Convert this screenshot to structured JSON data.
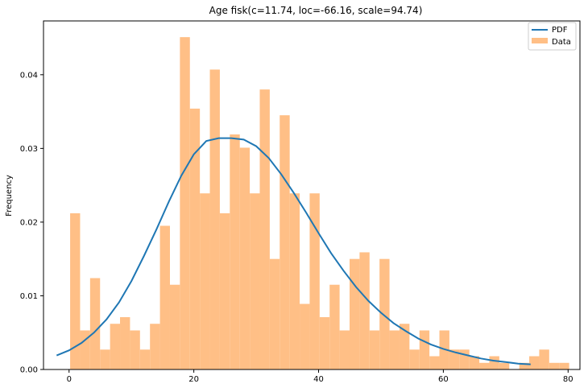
{
  "chart_data": {
    "type": "bar",
    "title": "Age fisk(c=11.74, loc=-66.16, scale=94.74)",
    "xlabel": "",
    "ylabel": "Frequency",
    "xlim": [
      -4.1,
      81.9
    ],
    "ylim": [
      0,
      0.0473
    ],
    "x_ticks": [
      "0",
      "20",
      "40",
      "60",
      "80"
    ],
    "y_ticks": [
      "0.00",
      "0.01",
      "0.02",
      "0.03",
      "0.04"
    ],
    "x_tick_values": [
      0,
      20,
      40,
      60,
      80
    ],
    "y_tick_values": [
      0,
      0.01,
      0.02,
      0.03,
      0.04
    ],
    "grid": false,
    "legend_position": "top-right",
    "colors": {
      "histogram": "#ffbf86",
      "pdf": "#1f77b4"
    },
    "histogram": {
      "name": "Data",
      "bin_start": 0.17,
      "bin_width": 1.6,
      "values": [
        0.0212,
        0.0053,
        0.0124,
        0.0027,
        0.0062,
        0.0071,
        0.0053,
        0.0027,
        0.0062,
        0.0195,
        0.0115,
        0.0451,
        0.0354,
        0.0239,
        0.0407,
        0.0212,
        0.0319,
        0.0301,
        0.0239,
        0.038,
        0.015,
        0.0345,
        0.0239,
        0.0089,
        0.0239,
        0.0071,
        0.0115,
        0.0053,
        0.015,
        0.0159,
        0.0053,
        0.015,
        0.0053,
        0.0062,
        0.0027,
        0.0053,
        0.0018,
        0.0053,
        0.0027,
        0.0027,
        0.0018,
        0.0009,
        0.0018,
        0.0009,
        0.0,
        0.0009,
        0.0018,
        0.0027,
        0.0009,
        0.0,
        0.0,
        0.0,
        0.0,
        0.0,
        0.0,
        0.0,
        0.0,
        0.0,
        0.0,
        0.0,
        0.0,
        0.0,
        0.0,
        0.0,
        0.0,
        0.0,
        0.0,
        0.0,
        0.0,
        0.0
      ],
      "extra_bars": [
        {
          "x0": 78.57,
          "x1": 80.17,
          "value": 0.0009
        }
      ]
    },
    "pdf": {
      "name": "PDF",
      "x": [
        -2,
        0,
        2,
        4,
        6,
        8,
        10,
        12,
        14,
        16,
        18,
        20,
        22,
        24,
        26,
        27,
        28,
        30,
        32,
        34,
        36,
        38,
        40,
        42,
        44,
        46,
        48,
        50,
        52,
        54,
        56,
        58,
        60,
        62,
        64,
        66,
        68,
        70,
        72,
        74
      ],
      "y": [
        0.0019,
        0.0026,
        0.0036,
        0.005,
        0.0068,
        0.0091,
        0.012,
        0.0154,
        0.019,
        0.0228,
        0.0263,
        0.0292,
        0.031,
        0.0314,
        0.0314,
        0.0313,
        0.0312,
        0.0303,
        0.0287,
        0.0265,
        0.024,
        0.0213,
        0.0185,
        0.0158,
        0.0134,
        0.0112,
        0.0093,
        0.0077,
        0.0063,
        0.0052,
        0.0042,
        0.0034,
        0.0028,
        0.0023,
        0.0019,
        0.0015,
        0.0012,
        0.001,
        0.0008,
        0.0007
      ]
    }
  }
}
